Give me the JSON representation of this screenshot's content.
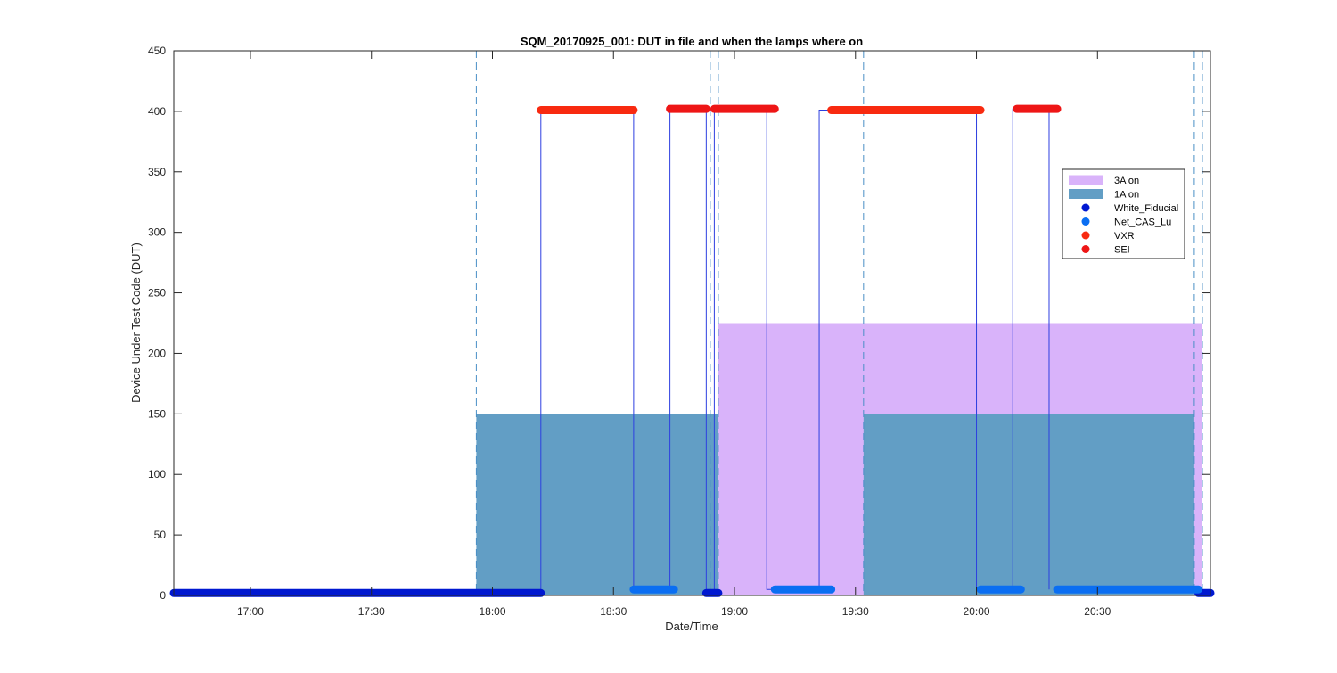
{
  "chart_data": {
    "type": "line",
    "title": "SQM_20170925_001: DUT in file and when the lamps where on",
    "xlabel": "Date/Time",
    "ylabel": "Device Under Test Code (DUT)",
    "xlim": [
      "16:41",
      "20:58"
    ],
    "ylim": [
      0,
      450
    ],
    "xticks": [
      "17:00",
      "17:30",
      "18:00",
      "18:30",
      "19:00",
      "19:30",
      "20:00",
      "20:30"
    ],
    "yticks": [
      0,
      50,
      100,
      150,
      200,
      250,
      300,
      350,
      400,
      450
    ],
    "grid": false,
    "legend_position": "top-right",
    "colors": {
      "lamp_3A": "#d9b3fa",
      "lamp_1A": "#629ec5",
      "White_Fiducial": "#0018d1",
      "Net_CAS_Lu": "#0a6ef2",
      "VXR": "#f82a10",
      "SEI": "#ee1616",
      "dut_line": "#2d3fe0",
      "dashed_marker": "#4a8fc6"
    },
    "areas": [
      {
        "name": "3A on",
        "value": 225,
        "intervals": [
          [
            "18:56",
            "20:56"
          ]
        ]
      },
      {
        "name": "1A on",
        "value": 150,
        "intervals": [
          [
            "17:56",
            "18:56"
          ],
          [
            "19:32",
            "20:54"
          ]
        ]
      }
    ],
    "series": [
      {
        "name": "White_Fiducial",
        "value": 2,
        "segments": [
          [
            "16:41",
            "18:12"
          ],
          [
            "18:53",
            "18:56"
          ],
          [
            "20:55",
            "20:58"
          ]
        ]
      },
      {
        "name": "Net_CAS_Lu",
        "value": 5,
        "segments": [
          [
            "18:35",
            "18:45"
          ],
          [
            "19:10",
            "19:24"
          ],
          [
            "20:01",
            "20:11"
          ],
          [
            "20:20",
            "20:55"
          ]
        ]
      },
      {
        "name": "VXR",
        "value": 401,
        "segments": [
          [
            "18:12",
            "18:35"
          ],
          [
            "19:24",
            "20:01"
          ]
        ]
      },
      {
        "name": "SEI",
        "value": 402,
        "segments": [
          [
            "18:44",
            "18:53"
          ],
          [
            "18:55",
            "19:10"
          ],
          [
            "20:10",
            "20:20"
          ]
        ]
      }
    ],
    "dut_steps": [
      [
        "18:12",
        2
      ],
      [
        "18:12",
        401
      ],
      [
        "18:35",
        401
      ],
      [
        "18:35",
        5
      ],
      [
        "18:44",
        5
      ],
      [
        "18:44",
        402
      ],
      [
        "18:53",
        402
      ],
      [
        "18:53",
        2
      ],
      [
        "18:55",
        2
      ],
      [
        "18:55",
        402
      ],
      [
        "19:08",
        402
      ],
      [
        "19:08",
        5
      ],
      [
        "19:21",
        5
      ],
      [
        "19:21",
        401
      ],
      [
        "20:00",
        401
      ],
      [
        "20:00",
        5
      ],
      [
        "20:09",
        5
      ],
      [
        "20:09",
        402
      ],
      [
        "20:18",
        402
      ],
      [
        "20:18",
        5
      ]
    ],
    "dashed_lines": [
      "17:56",
      "18:54",
      "18:56",
      "19:32",
      "20:54",
      "20:56"
    ]
  }
}
